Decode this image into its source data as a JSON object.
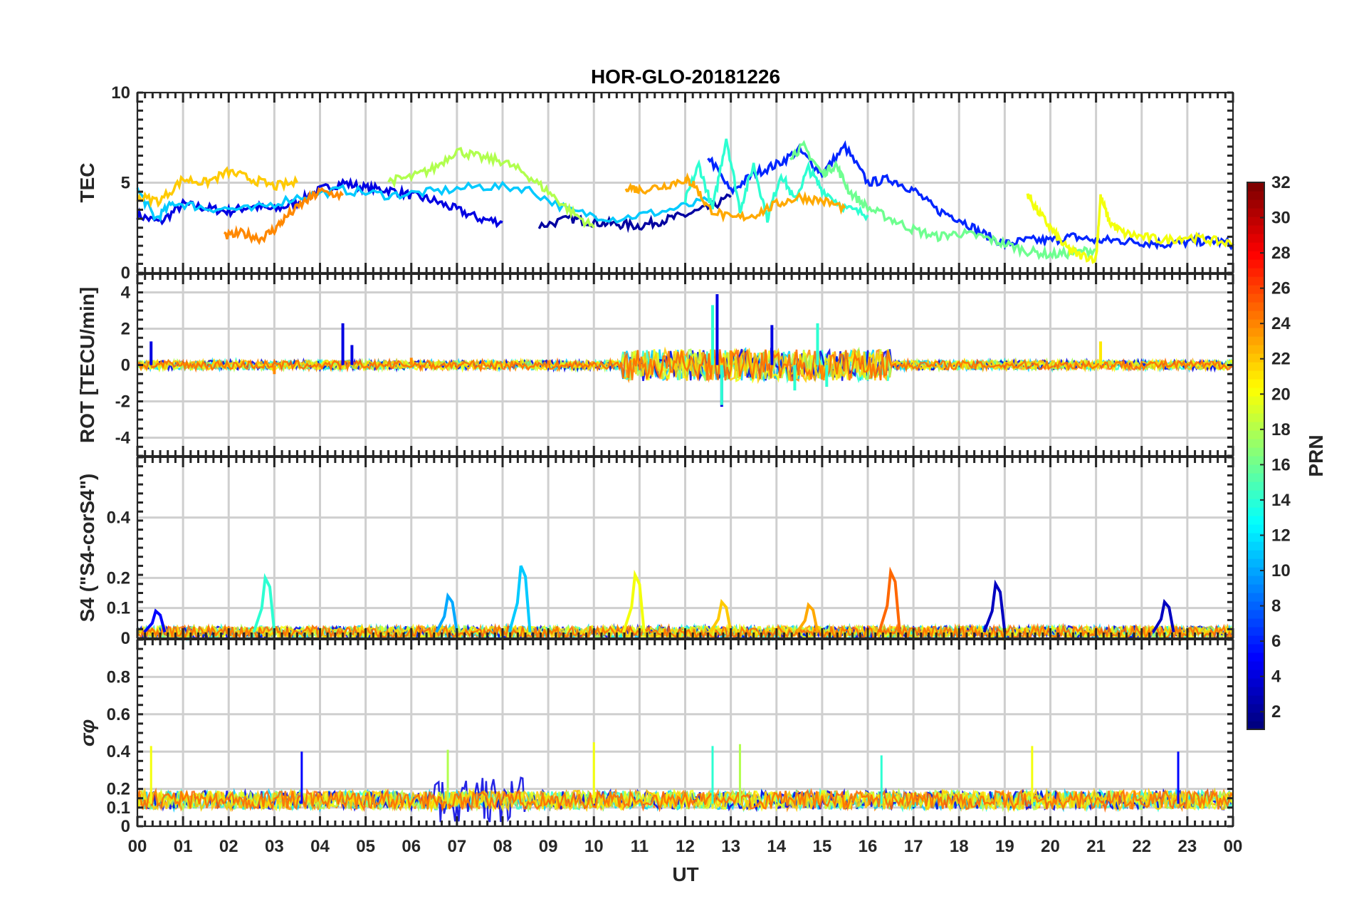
{
  "chart_data": {
    "type": "line",
    "title": "HOR-GLO-20181226",
    "xlabel": "UT",
    "x_ticks": [
      "00",
      "01",
      "02",
      "03",
      "04",
      "05",
      "06",
      "07",
      "08",
      "09",
      "10",
      "11",
      "12",
      "13",
      "14",
      "15",
      "16",
      "17",
      "18",
      "19",
      "20",
      "21",
      "22",
      "23",
      "00"
    ],
    "xlim": [
      0,
      24
    ],
    "colorbar": {
      "label": "PRN",
      "range": [
        1,
        32
      ],
      "ticks": [
        "2",
        "4",
        "6",
        "8",
        "10",
        "12",
        "14",
        "16",
        "18",
        "20",
        "22",
        "24",
        "26",
        "28",
        "30",
        "32"
      ],
      "colormap": "jet"
    },
    "panels": [
      {
        "id": "tec",
        "ylabel": "TEC",
        "ylim": [
          0,
          10
        ],
        "yticks": [
          "0",
          "5",
          "10"
        ],
        "grid": true,
        "series": [
          {
            "prn": 4,
            "x": [
              0,
              0.5,
              1,
              1.5,
              2,
              2.5,
              3,
              3.5,
              4,
              4.5,
              5,
              5.5,
              6,
              6.5,
              7,
              7.5,
              8
            ],
            "y": [
              3.2,
              2.8,
              3.8,
              3.6,
              3.4,
              3.7,
              3.5,
              3.9,
              4.6,
              5.0,
              4.7,
              4.6,
              4.3,
              4.0,
              3.5,
              3.0,
              2.8
            ]
          },
          {
            "prn": 2,
            "x": [
              8.8,
              9.5,
              10,
              10.5,
              11,
              11.5,
              12,
              12.5,
              13
            ],
            "y": [
              2.6,
              3.0,
              2.8,
              2.7,
              2.6,
              2.9,
              3.2,
              3.6,
              4.2
            ]
          },
          {
            "prn": 6,
            "x": [
              12.5,
              13,
              13.5,
              14,
              14.5,
              15,
              15.5,
              16,
              16.5,
              17,
              17.5,
              18,
              18.5,
              19,
              19.5,
              20,
              20.5,
              21,
              21.5,
              22,
              22.5,
              23,
              23.5,
              24
            ],
            "y": [
              6.5,
              4.5,
              5.5,
              6.0,
              6.8,
              5.5,
              7.0,
              5.0,
              5.2,
              4.6,
              3.5,
              3.0,
              2.2,
              1.6,
              1.8,
              1.8,
              2.0,
              1.8,
              1.8,
              1.7,
              1.6,
              1.7,
              1.8,
              1.6
            ]
          },
          {
            "prn": 11,
            "x": [
              0,
              0.4,
              0.8,
              1.5,
              2.5,
              3.5,
              4.5,
              5.5,
              6.5,
              7.5,
              8.5,
              9.5,
              10.5,
              11.5,
              12.5
            ],
            "y": [
              4.6,
              3.0,
              3.9,
              3.6,
              3.5,
              4.2,
              4.6,
              4.3,
              4.5,
              4.8,
              4.7,
              3.4,
              3.0,
              3.4,
              4.0
            ]
          },
          {
            "prn": 14,
            "x": [
              12.0,
              12.3,
              12.6,
              12.9,
              13.2,
              13.5,
              13.8,
              14.1,
              14.4,
              14.7,
              15,
              15.5,
              16
            ],
            "y": [
              4.0,
              6.0,
              3.5,
              7.5,
              3.5,
              6.0,
              3.0,
              5.5,
              4.0,
              5.8,
              4.6,
              3.6,
              3.2
            ]
          },
          {
            "prn": 16,
            "x": [
              14.3,
              14.6,
              15,
              15.3,
              15.6,
              16,
              16.5,
              17,
              17.5,
              18,
              18.5,
              19,
              19.5,
              20,
              20.5,
              21
            ],
            "y": [
              6.5,
              7.0,
              5.5,
              6.0,
              4.5,
              3.6,
              3.0,
              2.4,
              2.0,
              2.2,
              2.0,
              1.6,
              1.2,
              1.0,
              1.1,
              1.3
            ]
          },
          {
            "prn": 18,
            "x": [
              5.5,
              6,
              6.5,
              7,
              7.5,
              8,
              8.5,
              9,
              9.5,
              10
            ],
            "y": [
              5.1,
              5.3,
              5.8,
              6.8,
              6.4,
              6.2,
              5.5,
              4.5,
              3.4,
              2.5
            ]
          },
          {
            "prn": 20,
            "x": [
              19.5,
              19.7,
              20,
              20.3,
              20.6,
              21,
              21.1,
              21.3,
              21.6,
              22,
              22.5,
              23,
              23.5,
              24
            ],
            "y": [
              4.4,
              3.5,
              2.5,
              1.5,
              1.0,
              0.8,
              4.2,
              2.8,
              2.2,
              2.0,
              1.8,
              2.0,
              1.8,
              1.6
            ]
          },
          {
            "prn": 22,
            "x": [
              0,
              0.5,
              1,
              1.5,
              2,
              2.5,
              3,
              3.5
            ],
            "y": [
              4.2,
              4.0,
              5.2,
              5.0,
              5.6,
              5.2,
              4.8,
              5.0
            ]
          },
          {
            "prn": 23,
            "x": [
              10.7,
              11,
              11.5,
              12,
              12.2,
              12.5,
              13,
              13.5,
              14,
              14.5,
              15,
              15.5
            ],
            "y": [
              4.8,
              4.6,
              4.8,
              5.2,
              4.9,
              3.6,
              3.0,
              3.2,
              3.8,
              4.2,
              4.0,
              3.6
            ]
          },
          {
            "prn": 24,
            "x": [
              1.9,
              2.3,
              2.7,
              3.0,
              3.3,
              3.7,
              4,
              4.5
            ],
            "y": [
              2.0,
              2.2,
              1.9,
              2.4,
              3.2,
              4.0,
              4.5,
              4.3
            ]
          }
        ]
      },
      {
        "id": "rot",
        "ylabel": "ROT [TECU/min]",
        "ylim": [
          -5,
          5
        ],
        "yticks": [
          "-4",
          "-2",
          "0",
          "2",
          "4"
        ],
        "grid": true,
        "bursts": [
          {
            "prn": 4,
            "x": [
              0.3,
              4.5,
              4.7,
              12.7,
              12.8,
              13.9
            ],
            "y": [
              1.3,
              2.3,
              1.1,
              3.9,
              -2.3,
              2.2
            ]
          },
          {
            "prn": 14,
            "x": [
              12.6,
              12.8,
              14.4,
              14.9,
              15.1
            ],
            "y": [
              3.3,
              -2.2,
              -1.4,
              2.3,
              -1.2
            ]
          },
          {
            "prn": 21,
            "x": [
              21.1
            ],
            "y": [
              1.3
            ]
          },
          {
            "prn": 24,
            "x": [
              3.0,
              6.0,
              13.0,
              15.0
            ],
            "y": [
              -0.5,
              0.4,
              0.8,
              -0.8
            ]
          }
        ]
      },
      {
        "id": "s4",
        "ylabel": "S4 (\"S4-corS4\")",
        "ylim": [
          0,
          0.6
        ],
        "yticks": [
          "0",
          "0.1",
          "0.2",
          "0.4"
        ],
        "grid": true,
        "peaks": [
          {
            "prn": 5,
            "x": [
              0.5
            ],
            "y": [
              0.09
            ]
          },
          {
            "prn": 14,
            "x": [
              2.9
            ],
            "y": [
              0.2
            ]
          },
          {
            "prn": 10,
            "x": [
              6.9
            ],
            "y": [
              0.14
            ]
          },
          {
            "prn": 11,
            "x": [
              8.5
            ],
            "y": [
              0.24
            ]
          },
          {
            "prn": 20,
            "x": [
              11.0
            ],
            "y": [
              0.21
            ]
          },
          {
            "prn": 22,
            "x": [
              12.9
            ],
            "y": [
              0.12
            ]
          },
          {
            "prn": 23,
            "x": [
              14.8
            ],
            "y": [
              0.11
            ]
          },
          {
            "prn": 25,
            "x": [
              16.6
            ],
            "y": [
              0.22
            ]
          },
          {
            "prn": 3,
            "x": [
              18.9
            ],
            "y": [
              0.18
            ]
          },
          {
            "prn": 3,
            "x": [
              22.6
            ],
            "y": [
              0.12
            ]
          }
        ]
      },
      {
        "id": "sigma",
        "ylabel": "σφ",
        "ylim": [
          0,
          1
        ],
        "yticks": [
          "0",
          "0.1",
          "0.2",
          "0.4",
          "0.6",
          "0.8"
        ],
        "grid": true,
        "spikes": [
          {
            "prn": 20,
            "x": [
              0.3,
              10.0,
              19.6
            ],
            "y": [
              0.43,
              0.45,
              0.43
            ]
          },
          {
            "prn": 5,
            "x": [
              3.6,
              22.8
            ],
            "y": [
              0.4,
              0.4
            ]
          },
          {
            "prn": 14,
            "x": [
              12.6,
              16.3
            ],
            "y": [
              0.43,
              0.38
            ]
          },
          {
            "prn": 18,
            "x": [
              6.8,
              13.2
            ],
            "y": [
              0.41,
              0.44
            ]
          }
        ]
      }
    ]
  }
}
